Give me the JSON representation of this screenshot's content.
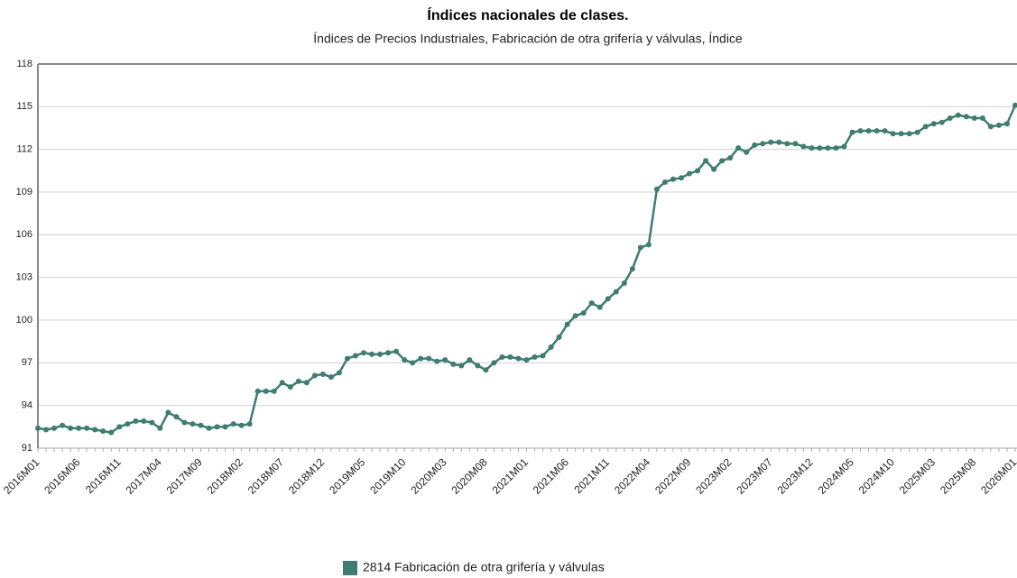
{
  "chart_data": {
    "type": "line",
    "title": "Índices nacionales de clases.",
    "subtitle": "Índices de Precios Industriales, Fabricación de otra grifería y válvulas, Índice",
    "categories": [
      "2016M01",
      null,
      null,
      null,
      null,
      "2016M06",
      null,
      null,
      null,
      null,
      "2016M11",
      null,
      null,
      null,
      null,
      "2017M04",
      null,
      null,
      null,
      null,
      "2017M09",
      null,
      null,
      null,
      null,
      "2018M02",
      null,
      null,
      null,
      null,
      "2018M07",
      null,
      null,
      null,
      null,
      "2018M12",
      null,
      null,
      null,
      null,
      "2019M05",
      null,
      null,
      null,
      null,
      "2019M10",
      null,
      null,
      null,
      null,
      "2020M03",
      null,
      null,
      null,
      null,
      "2020M08",
      null,
      null,
      null,
      null,
      "2021M01",
      null,
      null,
      null,
      null,
      "2021M06",
      null,
      null,
      null,
      null,
      "2021M11",
      null,
      null,
      null,
      null,
      "2022M04",
      null,
      null,
      null,
      null,
      "2022M09",
      null,
      null,
      null,
      null,
      "2023M02",
      null,
      null,
      null,
      null,
      "2023M07",
      null,
      null,
      null,
      null,
      "2023M12",
      null,
      null,
      null,
      null,
      "2024M05",
      null,
      null,
      null,
      null,
      "2024M10",
      null,
      null,
      null,
      null,
      "2025M03",
      null,
      null,
      null,
      null,
      "2025M08",
      null,
      null,
      null,
      null,
      "2026M01"
    ],
    "series": [
      {
        "name": "2814 Fabricación de otra grifería y válvulas",
        "color": "#3e7d6f",
        "values": [
          92.4,
          92.3,
          92.4,
          92.6,
          92.4,
          92.4,
          92.4,
          92.3,
          92.2,
          92.1,
          92.5,
          92.7,
          92.9,
          92.9,
          92.8,
          92.4,
          93.5,
          93.2,
          92.8,
          92.7,
          92.6,
          92.4,
          92.5,
          92.5,
          92.7,
          92.6,
          92.7,
          95.0,
          95.0,
          95.0,
          95.6,
          95.3,
          95.7,
          95.6,
          96.1,
          96.2,
          96.0,
          96.3,
          97.3,
          97.5,
          97.7,
          97.6,
          97.6,
          97.7,
          97.8,
          97.2,
          97.0,
          97.3,
          97.3,
          97.1,
          97.2,
          96.9,
          96.8,
          97.2,
          96.8,
          96.5,
          97.0,
          97.4,
          97.4,
          97.3,
          97.2,
          97.4,
          97.5,
          98.1,
          98.8,
          99.7,
          100.3,
          100.5,
          101.2,
          100.9,
          101.5,
          102.0,
          102.6,
          103.6,
          105.1,
          105.3,
          109.2,
          109.7,
          109.9,
          110.0,
          110.3,
          110.5,
          111.2,
          110.6,
          111.2,
          111.4,
          112.1,
          111.8,
          112.3,
          112.4,
          112.5,
          112.5,
          112.4,
          112.4,
          112.2,
          112.1,
          112.1,
          112.1,
          112.1,
          112.2,
          113.2,
          113.3,
          113.3,
          113.3,
          113.3,
          113.1,
          113.1,
          113.1,
          113.2,
          113.6,
          113.8,
          113.9,
          114.2,
          114.4,
          114.3,
          114.2,
          114.2,
          113.6,
          113.7,
          113.8,
          115.1
        ]
      }
    ],
    "ylim": [
      91,
      118
    ],
    "yticks": [
      91,
      94,
      97,
      100,
      103,
      106,
      109,
      112,
      115,
      118
    ],
    "grid": true,
    "legend": "bottom"
  }
}
